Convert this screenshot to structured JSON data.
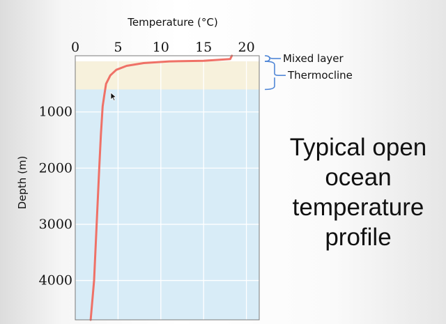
{
  "caption": "Typical open ocean temperature profile",
  "colors": {
    "deep_water": "#d8ecf7",
    "thermocline_band": "#f7f1dc",
    "profile_line": "#ef7167",
    "bracket": "#4f86d6"
  },
  "annotations": [
    {
      "label": "Mixed layer",
      "depth_range": [
        0,
        100
      ]
    },
    {
      "label": "Thermocline",
      "depth_range": [
        100,
        600
      ]
    }
  ],
  "chart_data": {
    "type": "line",
    "xlabel": "Temperature (°C)",
    "ylabel": "Depth (m)",
    "xlim": [
      0,
      21.5
    ],
    "ylim": [
      0,
      4700
    ],
    "x_axis_position": "top",
    "y_inverted": true,
    "x_ticks": [
      {
        "value": 0,
        "label": "0"
      },
      {
        "value": 5,
        "label": "5"
      },
      {
        "value": 10,
        "label": "10"
      },
      {
        "value": 15,
        "label": "15"
      },
      {
        "value": 20,
        "label": "20"
      }
    ],
    "y_ticks": [
      {
        "value": 1000,
        "label": "1000"
      },
      {
        "value": 2000,
        "label": "2000"
      },
      {
        "value": 3000,
        "label": "3000"
      },
      {
        "value": 4000,
        "label": "4000"
      }
    ],
    "grid": true,
    "series": [
      {
        "x": [
          18.3,
          18.1,
          15.0,
          11.0,
          8.0,
          6.0,
          4.8,
          4.1,
          3.6,
          3.4,
          3.2,
          3.0,
          2.8,
          2.5,
          2.2,
          1.8
        ],
        "y": [
          0,
          60,
          90,
          100,
          130,
          180,
          250,
          350,
          500,
          700,
          900,
          1400,
          2000,
          3000,
          4000,
          4700
        ]
      }
    ],
    "bands": [
      {
        "label": "Mixed layer",
        "y0": 0,
        "y1": 100
      },
      {
        "label": "Thermocline",
        "y0": 100,
        "y1": 600
      }
    ]
  }
}
